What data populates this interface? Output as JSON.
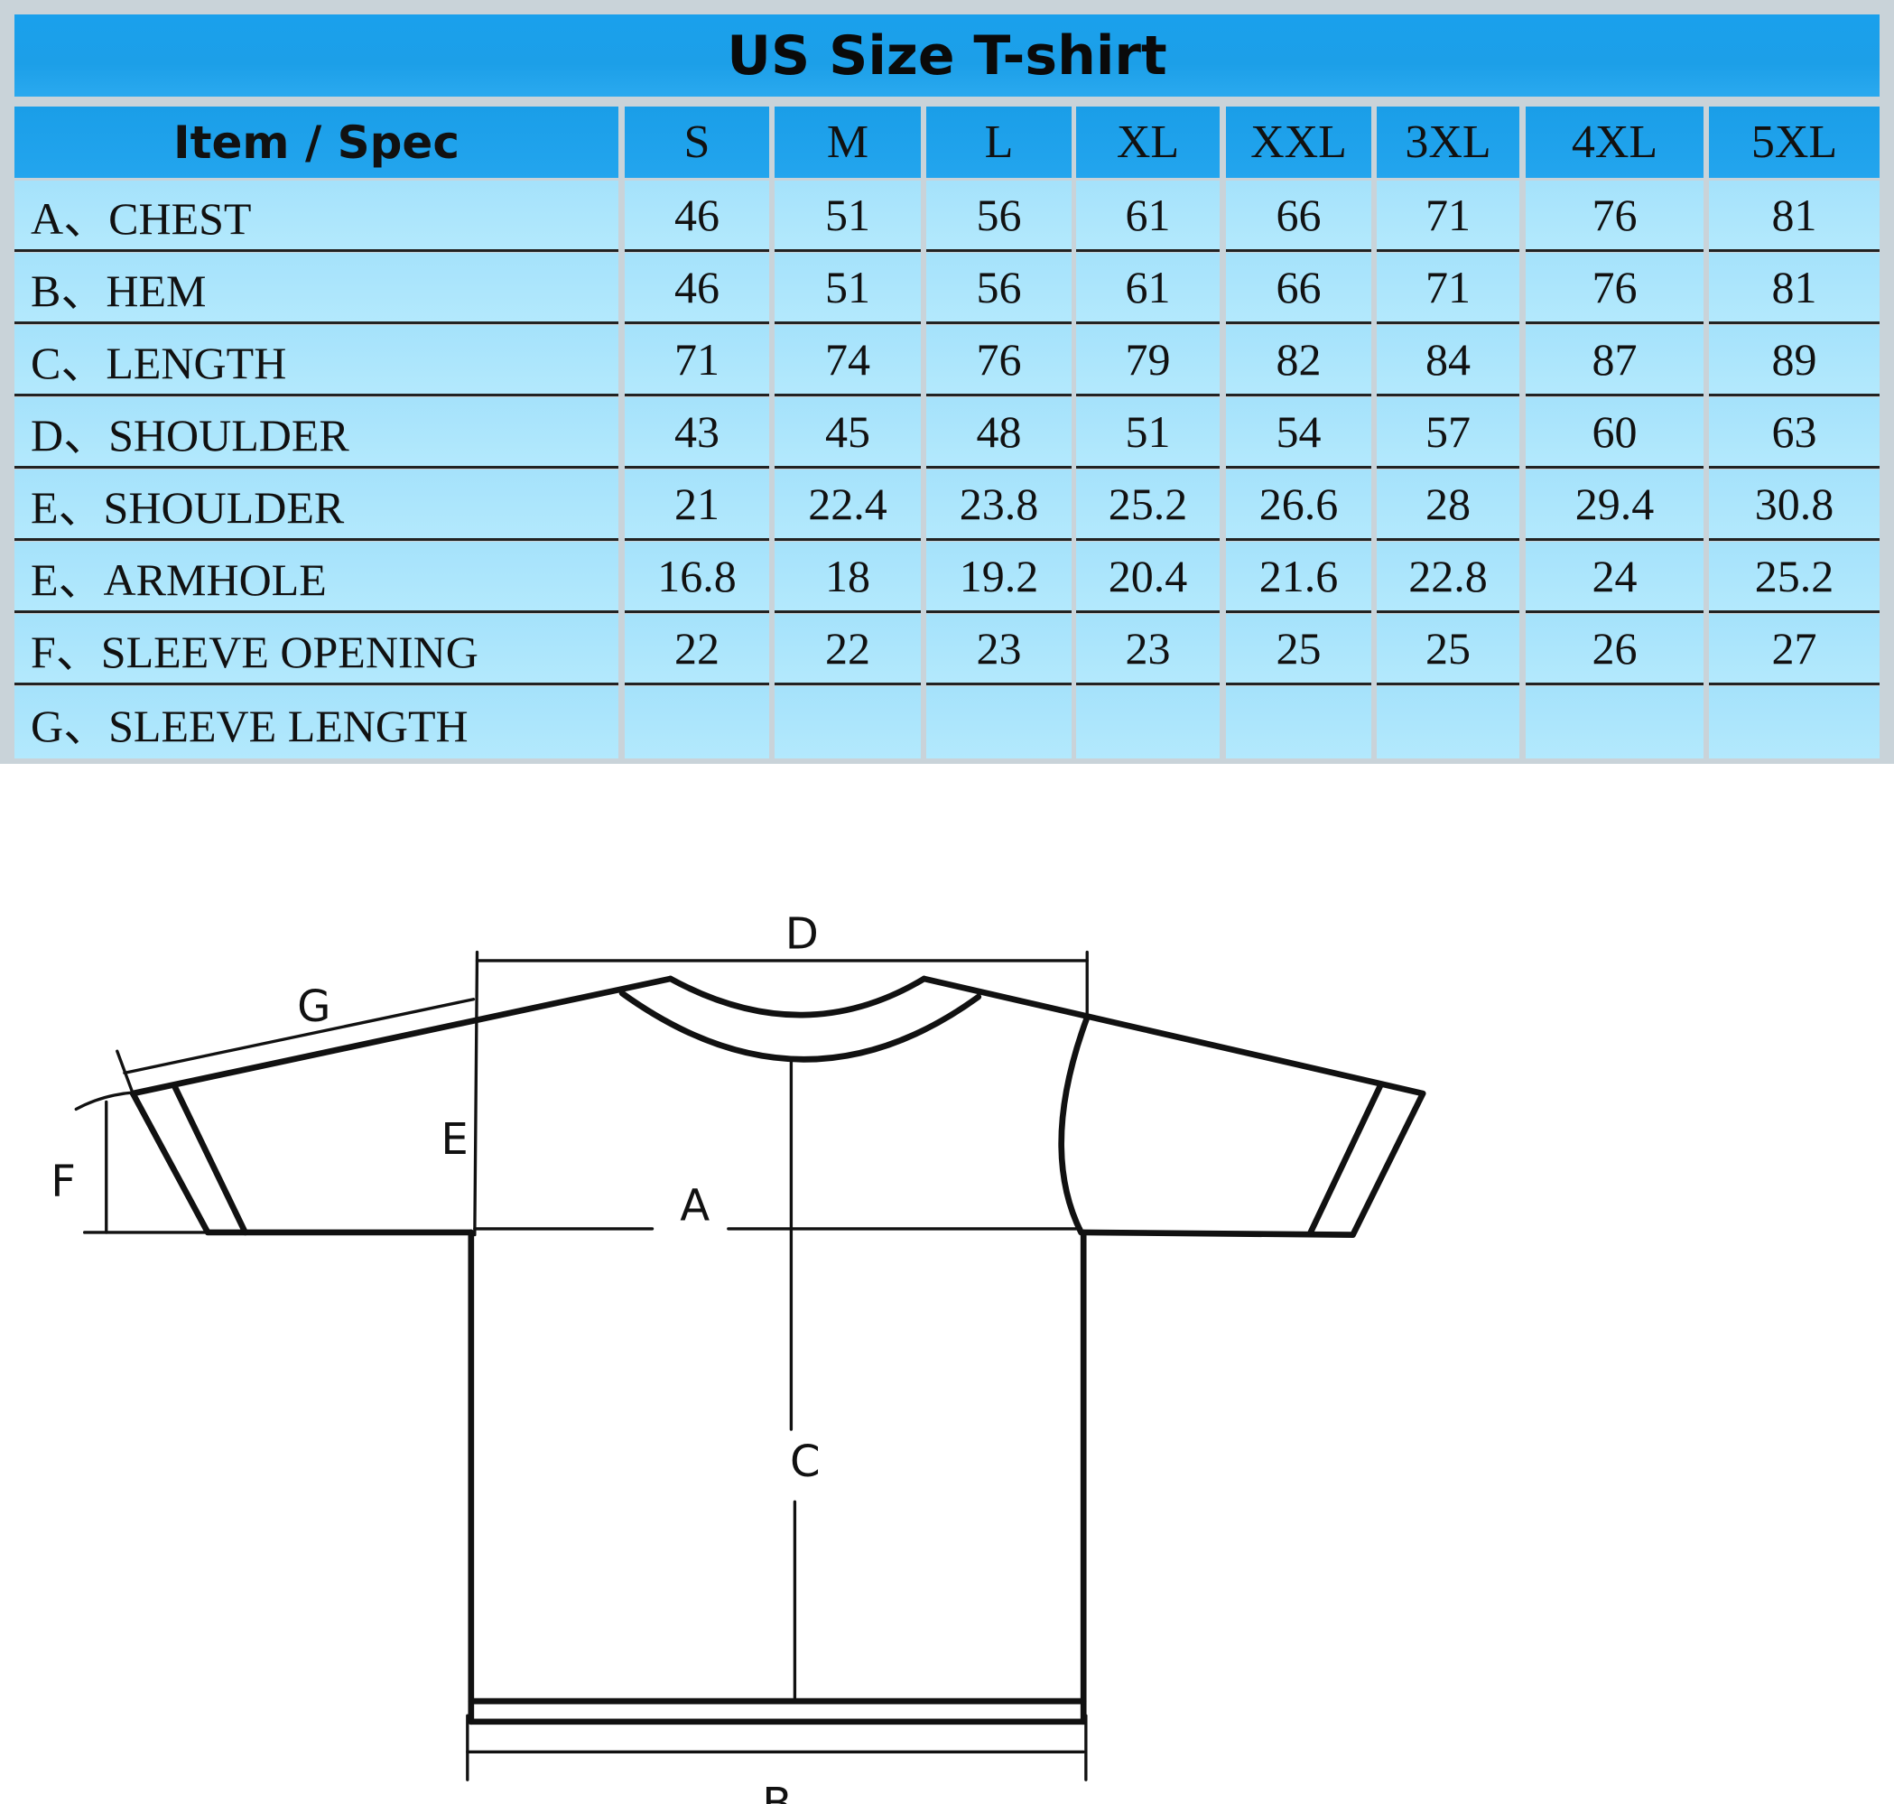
{
  "title": "US Size T-shirt",
  "columns": [
    "Item / Spec",
    "S",
    "M",
    "L",
    "XL",
    "XXL",
    "3XL",
    "4XL",
    "5XL"
  ],
  "rows": [
    {
      "label": "A、CHEST",
      "values": [
        "46",
        "51",
        "56",
        "61",
        "66",
        "71",
        "76",
        "81"
      ]
    },
    {
      "label": "B、HEM",
      "values": [
        "46",
        "51",
        "56",
        "61",
        "66",
        "71",
        "76",
        "81"
      ]
    },
    {
      "label": "C、LENGTH",
      "values": [
        "71",
        "74",
        "76",
        "79",
        "82",
        "84",
        "87",
        "89"
      ]
    },
    {
      "label": "D、SHOULDER",
      "values": [
        "43",
        "45",
        "48",
        "51",
        "54",
        "57",
        "60",
        "63"
      ]
    },
    {
      "label": "E、SHOULDER",
      "values": [
        "21",
        "22.4",
        "23.8",
        "25.2",
        "26.6",
        "28",
        "29.4",
        "30.8"
      ]
    },
    {
      "label": "E、ARMHOLE",
      "values": [
        "16.8",
        "18",
        "19.2",
        "20.4",
        "21.6",
        "22.8",
        "24",
        "25.2"
      ]
    },
    {
      "label": "F、SLEEVE OPENING",
      "values": [
        "22",
        "22",
        "23",
        "23",
        "25",
        "25",
        "26",
        "27"
      ]
    },
    {
      "label": "G、SLEEVE LENGTH",
      "values": [
        "",
        "",
        "",
        "",
        "",
        "",
        "",
        ""
      ]
    }
  ],
  "diagram": {
    "labels": {
      "A": "A",
      "B": "B",
      "C": "C",
      "D": "D",
      "E": "E",
      "F": "F",
      "G": "G"
    }
  },
  "colors": {
    "header": "#1c9fe8",
    "row": "#aae5fc",
    "border": "#c9d3d9"
  }
}
